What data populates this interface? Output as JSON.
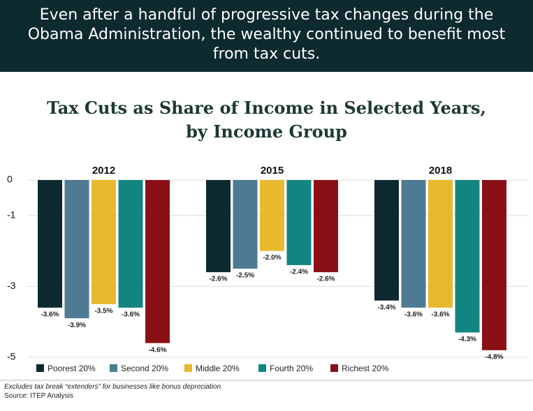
{
  "header": {
    "text": "Even after a handful of progressive tax changes during the\nObama Administration, the wealthy continued to benefit most\nfrom tax cuts."
  },
  "chart_data": {
    "type": "bar",
    "title": "Tax Cuts as Share of Income in Selected Years,\nby Income Group",
    "categories": [
      "2012",
      "2015",
      "2018"
    ],
    "series": [
      {
        "name": "Poorest 20%",
        "color": "#0c2a2f",
        "values": [
          -3.6,
          -2.6,
          -3.4
        ],
        "value_labels": [
          "-3.6%",
          "-2.6%",
          "-3.4%"
        ]
      },
      {
        "name": "Second 20%",
        "color": "#4e7a93",
        "values": [
          -3.9,
          -2.5,
          -3.6
        ],
        "value_labels": [
          "-3.9%",
          "-2.5%",
          "-3.6%"
        ]
      },
      {
        "name": "Middle 20%",
        "color": "#e8b92c",
        "values": [
          -3.5,
          -2.0,
          -3.6
        ],
        "value_labels": [
          "-3.5%",
          "-2.0%",
          "-3.6%"
        ]
      },
      {
        "name": "Fourth 20%",
        "color": "#128581",
        "values": [
          -3.6,
          -2.4,
          -4.3
        ],
        "value_labels": [
          "-3.6%",
          "-2.4%",
          "-4.3%"
        ]
      },
      {
        "name": "Richest 20%",
        "color": "#8a1015",
        "values": [
          -4.6,
          -2.6,
          -4.8
        ],
        "value_labels": [
          "-4.6%",
          "-2.6%",
          "-4.8%"
        ]
      }
    ],
    "ylim": [
      -5,
      0
    ],
    "yticks": [
      0,
      -1,
      -3,
      -5
    ],
    "grid": true,
    "legend": "bottom"
  },
  "footnote": "Excludes tax break “extenders” for businesses like bonus depreciation",
  "source": "Source: ITEP Analysis"
}
